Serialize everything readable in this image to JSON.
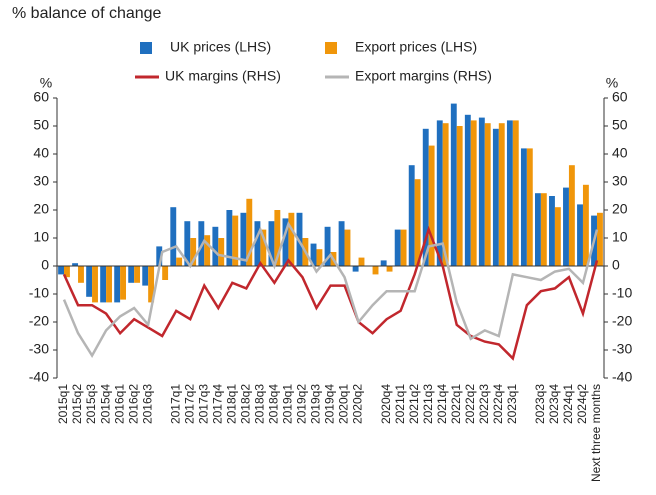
{
  "chart_data": {
    "type": "combo",
    "title": "% balance of change",
    "y_label": "%",
    "y2_label": "%",
    "categories": [
      "2015q1",
      "2015q2",
      "2015q3",
      "2015q4",
      "2016q1",
      "2016q2",
      "2016q3",
      null,
      "2017q1",
      "2017q2",
      "2017q3",
      "2017q4",
      "2018q1",
      "2018q2",
      "2018q3",
      "2018q4",
      "2019q1",
      "2019q2",
      "2019q3",
      "2019q4",
      "2020q1",
      "2020q2",
      null,
      "2020q4",
      "2021q1",
      "2021q2",
      "2021q3",
      "2021q4",
      "2022q1",
      "2022q2",
      "2022q3",
      "2022q4",
      "2023q1",
      null,
      "2023q3",
      "2023q4",
      "2024q1",
      "2024q2",
      "Next three months"
    ],
    "ylim": [
      -40,
      60
    ],
    "yticks": [
      -40,
      -30,
      -20,
      -10,
      0,
      10,
      20,
      30,
      40,
      50,
      60
    ],
    "y2lim": [
      -40,
      60
    ],
    "y2ticks": [
      -40,
      -30,
      -20,
      -10,
      0,
      10,
      20,
      30,
      40,
      50,
      60
    ],
    "series": [
      {
        "name": "UK prices (LHS)",
        "type": "bar",
        "color": "#1f6fbf",
        "values": [
          -3,
          1,
          -11,
          -13,
          -13,
          -6,
          -7,
          7,
          21,
          16,
          16,
          14,
          20,
          19,
          16,
          16,
          17,
          19,
          8,
          14,
          16,
          -2,
          0,
          2,
          13,
          36,
          49,
          52,
          58,
          54,
          53,
          49,
          52,
          42,
          26,
          25,
          28,
          22,
          18
        ]
      },
      {
        "name": "Export prices (LHS)",
        "type": "bar",
        "color": "#f0960a",
        "values": [
          -4,
          -6,
          -13,
          -13,
          -12,
          -6,
          -13,
          -5,
          3,
          10,
          11,
          10,
          18,
          24,
          13,
          20,
          19,
          10,
          6,
          5,
          13,
          3,
          -3,
          -2,
          13,
          31,
          43,
          51,
          50,
          52,
          51,
          51,
          52,
          42,
          26,
          21,
          36,
          29,
          19
        ]
      },
      {
        "name": "UK margins (RHS)",
        "type": "line",
        "axis": "y2",
        "color": "#c1272d",
        "values": [
          -3,
          -14,
          -14,
          -17,
          -24,
          -19,
          -22,
          -25,
          -16,
          -19,
          -7,
          -15,
          -6,
          -8,
          1,
          -6,
          2,
          -4,
          -15,
          -7,
          -7,
          -20,
          -24,
          -19,
          -16,
          -3,
          13,
          0,
          -21,
          -25,
          -27,
          -28,
          -33,
          -14,
          -9,
          -8,
          -4,
          -17,
          2
        ]
      },
      {
        "name": "Export margins (RHS)",
        "type": "line",
        "axis": "y2",
        "color": "#b5b5b5",
        "values": [
          -12,
          -24,
          -32,
          -23,
          -18,
          -15,
          -21,
          5,
          7,
          0,
          9,
          4,
          3,
          2,
          13,
          0,
          15,
          7,
          -2,
          4,
          -4,
          -20,
          -14,
          -9,
          -9,
          -9,
          7,
          8,
          -13,
          -26,
          -23,
          -25,
          -3,
          -4,
          -5,
          -2,
          -1,
          -6,
          13
        ]
      }
    ]
  }
}
